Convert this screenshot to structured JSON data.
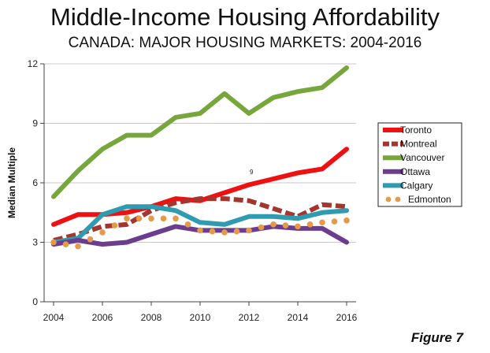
{
  "figure_label": "Figure 7",
  "chart_data": {
    "type": "line",
    "title": "Middle-Income Housing Affordability",
    "subtitle": "CANADA: MAJOR HOUSING MARKETS: 2004-2016",
    "xlabel": "",
    "ylabel": "Median Multiple",
    "xlim": [
      2004,
      2016
    ],
    "ylim": [
      0,
      12
    ],
    "x_ticks": [
      2004,
      2006,
      2008,
      2010,
      2012,
      2014,
      2016
    ],
    "y_ticks": [
      0,
      3,
      6,
      9,
      12
    ],
    "grid": "horizontal",
    "legend_position": "right",
    "x": [
      2004,
      2005,
      2006,
      2007,
      2008,
      2009,
      2010,
      2011,
      2012,
      2013,
      2014,
      2015,
      2016
    ],
    "annotation": "9",
    "series": [
      {
        "name": "Toronto",
        "color": "#ee1111",
        "style": "solid",
        "values": [
          3.9,
          4.4,
          4.4,
          4.5,
          4.8,
          5.2,
          5.1,
          5.5,
          5.9,
          6.2,
          6.5,
          6.7,
          7.7
        ]
      },
      {
        "name": "Montreal",
        "color": "#a3362e",
        "style": "dashed",
        "values": [
          3.1,
          3.4,
          3.8,
          3.9,
          4.6,
          5.0,
          5.2,
          5.2,
          5.1,
          4.7,
          4.3,
          4.9,
          4.8
        ]
      },
      {
        "name": "Vancouver",
        "color": "#77a63c",
        "style": "solid",
        "values": [
          5.3,
          6.6,
          7.7,
          8.4,
          8.4,
          9.3,
          9.5,
          10.5,
          9.5,
          10.3,
          10.6,
          10.8,
          11.8
        ]
      },
      {
        "name": "Ottawa",
        "color": "#6a3d8f",
        "style": "solid",
        "values": [
          2.9,
          3.1,
          2.9,
          3.0,
          3.4,
          3.8,
          3.6,
          3.6,
          3.6,
          3.8,
          3.7,
          3.7,
          3.0
        ]
      },
      {
        "name": "Calgary",
        "color": "#2e9bb0",
        "style": "solid",
        "values": [
          3.0,
          3.2,
          4.4,
          4.8,
          4.8,
          4.6,
          4.0,
          3.9,
          4.3,
          4.3,
          4.2,
          4.5,
          4.6
        ]
      },
      {
        "name": "Edmonton",
        "color": "#e59a4a",
        "style": "dotted",
        "values": [
          3.0,
          2.8,
          3.5,
          4.2,
          4.2,
          4.2,
          3.6,
          3.5,
          3.6,
          3.9,
          3.8,
          4.0,
          4.1
        ]
      }
    ]
  }
}
